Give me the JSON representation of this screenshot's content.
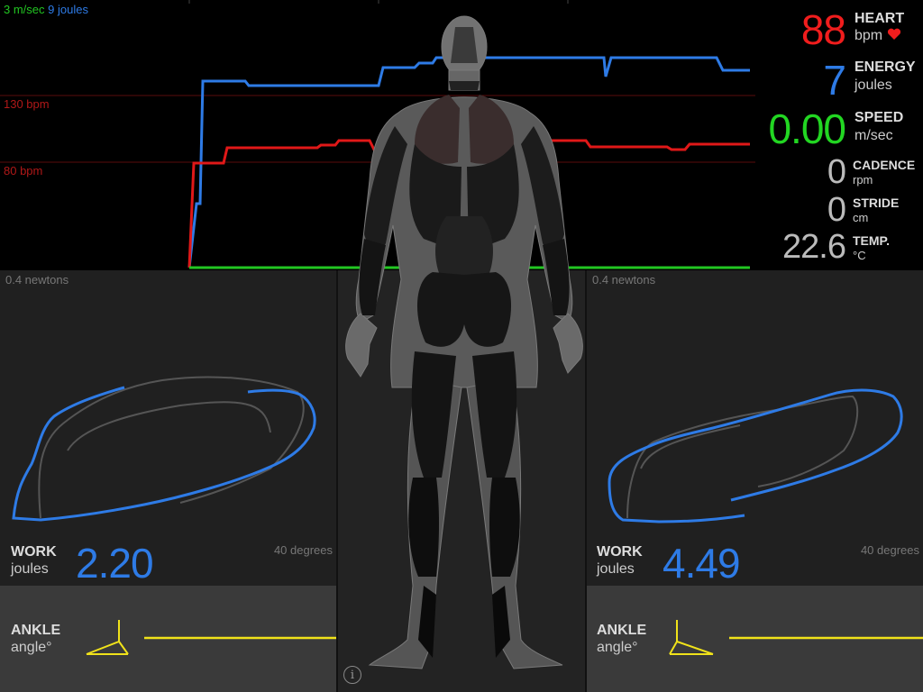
{
  "top_chart": {
    "legend_speed": "3 m/sec",
    "legend_energy": "9 joules",
    "grid_130": "130 bpm",
    "grid_80": "80 bpm",
    "colors": {
      "energy": "#2e7be6",
      "heart": "#e01818",
      "speed": "#22c622",
      "gridline": "#5a0c0c"
    }
  },
  "chart_data": {
    "type": "line",
    "series": [
      {
        "name": "energy",
        "color": "#2e7be6"
      },
      {
        "name": "heart",
        "color": "#e01818"
      },
      {
        "name": "speed",
        "color": "#22c622"
      }
    ]
  },
  "stats": {
    "heart": {
      "value": "88",
      "label": "HEART",
      "unit": "bpm",
      "icon": "heart-icon",
      "color": "#f01d1d"
    },
    "energy": {
      "value": "7",
      "label": "ENERGY",
      "unit": "joules",
      "color": "#2e7be6"
    },
    "speed": {
      "value": "0.00",
      "label": "SPEED",
      "unit": "m/sec",
      "color": "#22d622"
    },
    "cadence": {
      "value": "0",
      "label": "CADENCE",
      "unit": "rpm",
      "color": "#bbbbbb"
    },
    "stride": {
      "value": "0",
      "label": "STRIDE",
      "unit": "cm",
      "color": "#bbbbbb"
    },
    "temp": {
      "value": "22.6",
      "label": "TEMP.",
      "unit": "°C",
      "color": "#bbbbbb"
    }
  },
  "left_panel": {
    "force_label": "0.4 newtons",
    "angle_label": "40 degrees",
    "work_label": "WORK",
    "work_unit": "joules",
    "work_value": "2.20"
  },
  "right_panel": {
    "force_label": "0.4 newtons",
    "angle_label": "40 degrees",
    "work_label": "WORK",
    "work_unit": "joules",
    "work_value": "4.49"
  },
  "left_ankle": {
    "label": "ANKLE",
    "unit": "angle°",
    "color": "#f0e21a"
  },
  "right_ankle": {
    "label": "ANKLE",
    "unit": "angle°",
    "color": "#f0e21a"
  },
  "info_button": "i"
}
